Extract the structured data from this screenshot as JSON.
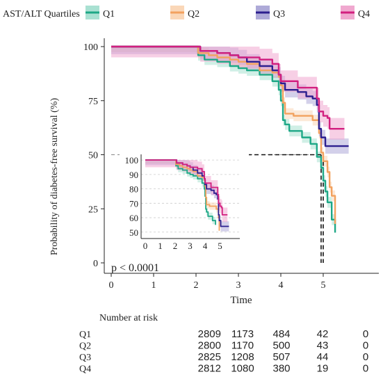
{
  "legend": {
    "title": "AST/ALT Quartiles",
    "items": [
      {
        "label": "Q1",
        "color": "#1ea887",
        "fill": "#a9e1d2"
      },
      {
        "label": "Q2",
        "color": "#f2a25f",
        "fill": "#fad7b8"
      },
      {
        "label": "Q3",
        "color": "#2c1f8f",
        "fill": "#aeaad8"
      },
      {
        "label": "Q4",
        "color": "#d21f7f",
        "fill": "#f0a8cf"
      }
    ]
  },
  "chart_data": {
    "type": "line",
    "subtype": "kaplan-meier step curves with confidence bands",
    "xlabel": "Time",
    "ylabel": "Probability of diabetes-free survival (%)",
    "xlim": [
      0,
      6
    ],
    "ylim": [
      0,
      100
    ],
    "x_ticks": [
      0,
      1,
      2,
      3,
      4,
      5
    ],
    "y_ticks": [
      0,
      25,
      50,
      75,
      100
    ],
    "reference_line_y": 50,
    "median_times": [
      4.95,
      5.0
    ],
    "annotation": "p < 0.0001",
    "series": [
      {
        "name": "Q1",
        "color": "#1ea887",
        "fill": "#a9e1d2",
        "band": 2.5,
        "points": [
          [
            0,
            100
          ],
          [
            2.0,
            100
          ],
          [
            2.05,
            96
          ],
          [
            2.2,
            94
          ],
          [
            2.5,
            93
          ],
          [
            2.8,
            91
          ],
          [
            3.0,
            90
          ],
          [
            3.2,
            89
          ],
          [
            3.5,
            87
          ],
          [
            3.8,
            84
          ],
          [
            3.95,
            80
          ],
          [
            4.0,
            75
          ],
          [
            4.05,
            66
          ],
          [
            4.1,
            64
          ],
          [
            4.2,
            61
          ],
          [
            4.5,
            58
          ],
          [
            4.7,
            55
          ],
          [
            4.85,
            49
          ],
          [
            4.95,
            44
          ],
          [
            5.0,
            38
          ],
          [
            5.05,
            33
          ],
          [
            5.1,
            28
          ],
          [
            5.2,
            20
          ],
          [
            5.28,
            14
          ]
        ]
      },
      {
        "name": "Q2",
        "color": "#f2a25f",
        "fill": "#fad7b8",
        "band": 2.5,
        "points": [
          [
            0,
            100
          ],
          [
            2.0,
            100
          ],
          [
            2.05,
            97
          ],
          [
            2.3,
            96
          ],
          [
            2.5,
            95
          ],
          [
            2.8,
            94
          ],
          [
            3.0,
            93
          ],
          [
            3.2,
            92
          ],
          [
            3.5,
            89
          ],
          [
            3.8,
            88
          ],
          [
            3.95,
            86
          ],
          [
            4.0,
            82
          ],
          [
            4.05,
            74
          ],
          [
            4.1,
            69
          ],
          [
            4.3,
            68
          ],
          [
            4.6,
            68
          ],
          [
            4.75,
            66
          ],
          [
            4.9,
            60
          ],
          [
            4.95,
            51
          ],
          [
            5.0,
            47
          ],
          [
            5.1,
            42
          ],
          [
            5.15,
            35
          ],
          [
            5.2,
            31
          ],
          [
            5.28,
            18
          ]
        ]
      },
      {
        "name": "Q3",
        "color": "#2c1f8f",
        "fill": "#aeaad8",
        "band": 3.5,
        "points": [
          [
            0,
            100
          ],
          [
            2.0,
            100
          ],
          [
            2.1,
            98
          ],
          [
            2.5,
            97
          ],
          [
            2.8,
            96
          ],
          [
            3.0,
            95
          ],
          [
            3.2,
            93
          ],
          [
            3.5,
            91
          ],
          [
            3.8,
            89
          ],
          [
            3.95,
            87
          ],
          [
            4.0,
            83
          ],
          [
            4.1,
            80
          ],
          [
            4.4,
            79
          ],
          [
            4.6,
            77
          ],
          [
            4.75,
            76
          ],
          [
            4.85,
            73
          ],
          [
            4.9,
            62
          ],
          [
            4.95,
            58
          ],
          [
            5.05,
            54
          ],
          [
            5.15,
            54
          ],
          [
            5.6,
            54
          ]
        ]
      },
      {
        "name": "Q4",
        "color": "#d21f7f",
        "fill": "#f0a8cf",
        "band": 5,
        "points": [
          [
            0,
            100
          ],
          [
            2.0,
            100
          ],
          [
            2.1,
            98
          ],
          [
            2.5,
            97
          ],
          [
            2.8,
            96
          ],
          [
            3.0,
            95
          ],
          [
            3.3,
            95
          ],
          [
            3.5,
            94
          ],
          [
            3.8,
            92
          ],
          [
            3.95,
            87
          ],
          [
            4.0,
            84
          ],
          [
            4.2,
            84
          ],
          [
            4.4,
            81
          ],
          [
            4.8,
            81
          ],
          [
            4.85,
            76
          ],
          [
            4.9,
            70
          ],
          [
            5.0,
            68
          ],
          [
            5.1,
            67
          ],
          [
            5.15,
            62
          ],
          [
            5.5,
            62
          ]
        ]
      }
    ],
    "inset": {
      "x_ticks": [
        0,
        1,
        2,
        3,
        4,
        5
      ],
      "y_ticks": [
        50,
        60,
        70,
        80,
        90,
        100
      ],
      "xlim": [
        0,
        5.7
      ],
      "ylim": [
        47,
        102
      ]
    }
  },
  "risk_table": {
    "title": "Number at risk",
    "rows": [
      {
        "label": "Q1",
        "values": [
          "2809",
          "1173",
          "484",
          "42",
          "0"
        ]
      },
      {
        "label": "Q2",
        "values": [
          "2800",
          "1170",
          "500",
          "43",
          "0"
        ]
      },
      {
        "label": "Q3",
        "values": [
          "2825",
          "1208",
          "507",
          "44",
          "0"
        ]
      },
      {
        "label": "Q4",
        "values": [
          "2812",
          "1080",
          "380",
          "19",
          "0"
        ]
      }
    ]
  }
}
